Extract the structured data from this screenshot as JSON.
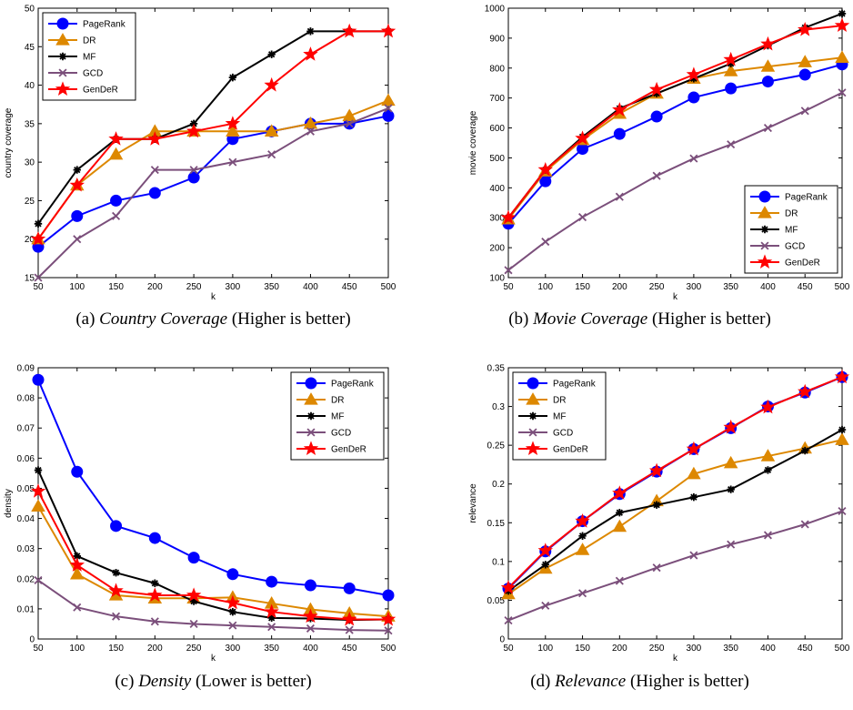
{
  "chart_data": [
    {
      "type": "line",
      "id": "a",
      "caption_prefix": "(a) ",
      "caption_italic": "Country Coverage",
      "caption_suffix": " (Higher is better)",
      "xlabel": "k",
      "ylabel": "country coverage",
      "x": [
        50,
        100,
        150,
        200,
        250,
        300,
        350,
        400,
        450,
        500
      ],
      "ylim": [
        15,
        50
      ],
      "yticks": [
        15,
        20,
        25,
        30,
        35,
        40,
        45,
        50
      ],
      "ytick_labels": [
        "15",
        "20",
        "25",
        "30",
        "35",
        "40",
        "45",
        "50"
      ],
      "legend_position": "top-left",
      "series": [
        {
          "name": "PageRank",
          "color": "#0000ff",
          "marker": "circle",
          "values": [
            19,
            23,
            25,
            26,
            28,
            33,
            34,
            35,
            35,
            36
          ]
        },
        {
          "name": "DR",
          "color": "#dd8800",
          "marker": "triangle",
          "values": [
            20,
            27,
            31,
            34,
            34,
            34,
            34,
            35,
            36,
            38
          ]
        },
        {
          "name": "MF",
          "color": "#000000",
          "marker": "asterisk",
          "values": [
            22,
            29,
            33,
            33,
            35,
            41,
            44,
            47,
            47,
            47
          ]
        },
        {
          "name": "GCD",
          "color": "#7b4f7b",
          "marker": "x",
          "values": [
            15,
            20,
            23,
            29,
            29,
            30,
            31,
            34,
            35,
            37
          ]
        },
        {
          "name": "GenDeR",
          "color": "#ff0000",
          "marker": "star",
          "values": [
            20,
            27,
            33,
            33,
            34,
            35,
            40,
            44,
            47,
            47
          ]
        }
      ]
    },
    {
      "type": "line",
      "id": "b",
      "caption_prefix": "(b) ",
      "caption_italic": "Movie Coverage",
      "caption_suffix": " (Higher is better)",
      "xlabel": "k",
      "ylabel": "movie coverage",
      "x": [
        50,
        100,
        150,
        200,
        250,
        300,
        350,
        400,
        450,
        500
      ],
      "ylim": [
        100,
        1000
      ],
      "yticks": [
        100,
        200,
        300,
        400,
        500,
        600,
        700,
        800,
        900,
        1000
      ],
      "ytick_labels": [
        "100",
        "200",
        "300",
        "400",
        "500",
        "600",
        "700",
        "800",
        "900",
        "1000"
      ],
      "legend_position": "bottom-right",
      "series": [
        {
          "name": "PageRank",
          "color": "#0000ff",
          "marker": "circle",
          "values": [
            280,
            422,
            530,
            580,
            638,
            702,
            732,
            755,
            778,
            812
          ]
        },
        {
          "name": "DR",
          "color": "#dd8800",
          "marker": "triangle",
          "values": [
            295,
            455,
            560,
            648,
            715,
            765,
            790,
            805,
            820,
            835
          ]
        },
        {
          "name": "MF",
          "color": "#000000",
          "marker": "asterisk",
          "values": [
            300,
            460,
            570,
            665,
            715,
            765,
            815,
            875,
            935,
            982
          ]
        },
        {
          "name": "GCD",
          "color": "#7b4f7b",
          "marker": "x",
          "values": [
            125,
            220,
            302,
            370,
            440,
            498,
            545,
            600,
            657,
            718
          ]
        },
        {
          "name": "GenDeR",
          "color": "#ff0000",
          "marker": "star",
          "values": [
            300,
            460,
            565,
            660,
            728,
            778,
            828,
            880,
            928,
            942
          ]
        }
      ]
    },
    {
      "type": "line",
      "id": "c",
      "caption_prefix": "(c) ",
      "caption_italic": "Density",
      "caption_suffix": " (Lower is better)",
      "xlabel": "k",
      "ylabel": "density",
      "x": [
        50,
        100,
        150,
        200,
        250,
        300,
        350,
        400,
        450,
        500
      ],
      "ylim": [
        0,
        0.09
      ],
      "yticks": [
        0,
        0.01,
        0.02,
        0.03,
        0.04,
        0.05,
        0.06,
        0.07,
        0.08,
        0.09
      ],
      "ytick_labels": [
        "0",
        "0.01",
        "0.02",
        "0.03",
        "0.04",
        "0.05",
        "0.06",
        "0.07",
        "0.08",
        "0.09"
      ],
      "legend_position": "top-right",
      "series": [
        {
          "name": "PageRank",
          "color": "#0000ff",
          "marker": "circle",
          "values": [
            0.086,
            0.0555,
            0.0375,
            0.0335,
            0.027,
            0.0215,
            0.019,
            0.0178,
            0.0168,
            0.0145
          ]
        },
        {
          "name": "DR",
          "color": "#dd8800",
          "marker": "triangle",
          "values": [
            0.044,
            0.0215,
            0.0145,
            0.0135,
            0.0135,
            0.0138,
            0.0118,
            0.0098,
            0.0085,
            0.0075
          ]
        },
        {
          "name": "MF",
          "color": "#000000",
          "marker": "asterisk",
          "values": [
            0.056,
            0.0275,
            0.022,
            0.0185,
            0.0125,
            0.009,
            0.007,
            0.0068,
            0.0063,
            0.0065
          ]
        },
        {
          "name": "GCD",
          "color": "#7b4f7b",
          "marker": "x",
          "values": [
            0.0195,
            0.0105,
            0.0075,
            0.0058,
            0.005,
            0.0045,
            0.004,
            0.0035,
            0.003,
            0.0028
          ]
        },
        {
          "name": "GenDeR",
          "color": "#ff0000",
          "marker": "star",
          "values": [
            0.049,
            0.0245,
            0.016,
            0.0145,
            0.0145,
            0.012,
            0.009,
            0.0075,
            0.0065,
            0.0065
          ]
        }
      ]
    },
    {
      "type": "line",
      "id": "d",
      "caption_prefix": "(d) ",
      "caption_italic": "Relevance",
      "caption_suffix": " (Higher is better)",
      "xlabel": "k",
      "ylabel": "relevance",
      "x": [
        50,
        100,
        150,
        200,
        250,
        300,
        350,
        400,
        450,
        500
      ],
      "ylim": [
        0,
        0.35
      ],
      "yticks": [
        0,
        0.05,
        0.1,
        0.15,
        0.2,
        0.25,
        0.3,
        0.35
      ],
      "ytick_labels": [
        "0",
        "0.05",
        "0.1",
        "0.15",
        "0.2",
        "0.25",
        "0.3",
        "0.35"
      ],
      "legend_position": "top-left",
      "series": [
        {
          "name": "PageRank",
          "color": "#0000ff",
          "marker": "circle",
          "values": [
            0.065,
            0.113,
            0.152,
            0.187,
            0.216,
            0.245,
            0.272,
            0.3,
            0.318,
            0.338
          ]
        },
        {
          "name": "DR",
          "color": "#dd8800",
          "marker": "triangle",
          "values": [
            0.058,
            0.091,
            0.115,
            0.145,
            0.178,
            0.213,
            0.227,
            0.236,
            0.246,
            0.257
          ]
        },
        {
          "name": "MF",
          "color": "#000000",
          "marker": "asterisk",
          "values": [
            0.062,
            0.096,
            0.133,
            0.163,
            0.173,
            0.183,
            0.193,
            0.218,
            0.243,
            0.27
          ]
        },
        {
          "name": "GCD",
          "color": "#7b4f7b",
          "marker": "x",
          "values": [
            0.024,
            0.043,
            0.059,
            0.075,
            0.092,
            0.108,
            0.122,
            0.134,
            0.148,
            0.165
          ]
        },
        {
          "name": "GenDeR",
          "color": "#ff0000",
          "marker": "star",
          "values": [
            0.066,
            0.114,
            0.152,
            0.188,
            0.217,
            0.245,
            0.273,
            0.299,
            0.319,
            0.338
          ]
        }
      ]
    }
  ]
}
